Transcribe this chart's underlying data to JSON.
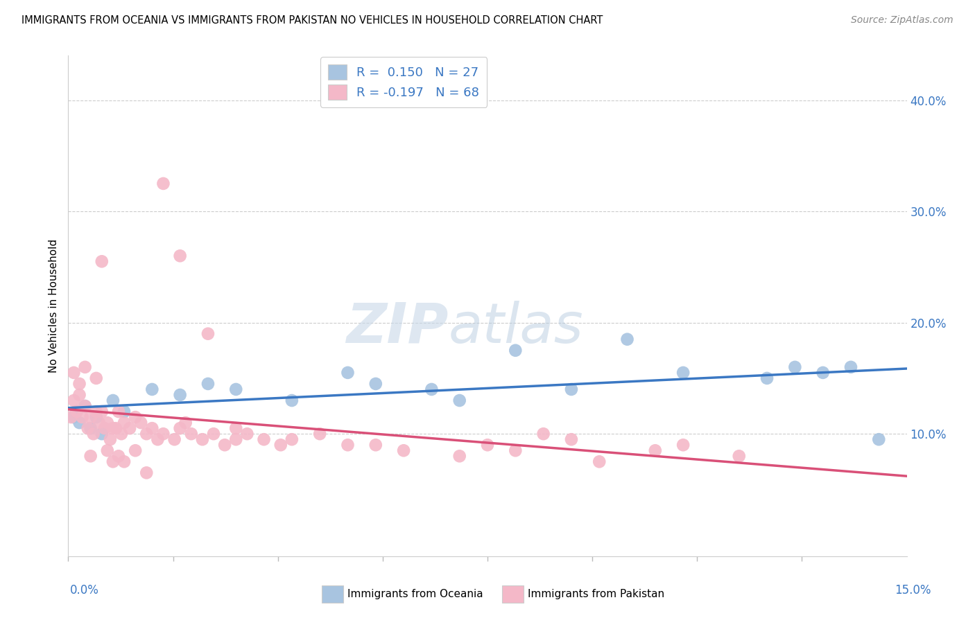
{
  "title": "IMMIGRANTS FROM OCEANIA VS IMMIGRANTS FROM PAKISTAN NO VEHICLES IN HOUSEHOLD CORRELATION CHART",
  "source": "Source: ZipAtlas.com",
  "ylabel": "No Vehicles in Household",
  "y_ticks": [
    10.0,
    20.0,
    30.0,
    40.0
  ],
  "xlim": [
    0.0,
    15.0
  ],
  "ylim": [
    -1.0,
    44.0
  ],
  "legend_r1": "R =  0.150",
  "legend_n1": "N = 27",
  "legend_r2": "R = -0.197",
  "legend_n2": "N = 68",
  "oceania_color": "#a8c4e0",
  "pakistan_color": "#f4b8c8",
  "trendline_oceania_color": "#3b78c3",
  "trendline_pakistan_color": "#d95078",
  "watermark_zip": "ZIP",
  "watermark_atlas": "atlas",
  "oceania_x": [
    0.1,
    0.15,
    0.2,
    0.3,
    0.4,
    0.5,
    0.6,
    0.8,
    1.0,
    1.5,
    2.0,
    2.5,
    3.0,
    4.0,
    5.0,
    5.5,
    6.5,
    7.0,
    8.0,
    9.0,
    10.0,
    11.0,
    12.5,
    13.0,
    13.5,
    14.0,
    14.5
  ],
  "oceania_y": [
    11.5,
    12.0,
    11.0,
    12.5,
    10.5,
    11.5,
    10.0,
    13.0,
    12.0,
    14.0,
    13.5,
    14.5,
    14.0,
    13.0,
    15.5,
    14.5,
    14.0,
    13.0,
    17.5,
    14.0,
    18.5,
    15.5,
    15.0,
    16.0,
    15.5,
    16.0,
    9.5
  ],
  "pakistan_x": [
    0.05,
    0.1,
    0.15,
    0.2,
    0.25,
    0.3,
    0.35,
    0.4,
    0.45,
    0.5,
    0.55,
    0.6,
    0.65,
    0.7,
    0.75,
    0.8,
    0.85,
    0.9,
    0.95,
    1.0,
    1.1,
    1.2,
    1.3,
    1.4,
    1.5,
    1.6,
    1.7,
    1.9,
    2.0,
    2.1,
    2.2,
    2.4,
    2.6,
    2.8,
    3.0,
    3.2,
    3.5,
    3.8,
    4.0,
    4.5,
    5.0,
    5.5,
    6.0,
    7.0,
    7.5,
    8.0,
    9.0,
    9.5,
    10.5,
    11.0,
    12.0,
    0.1,
    0.2,
    0.3,
    0.4,
    0.5,
    0.6,
    0.7,
    0.8,
    0.9,
    1.0,
    1.2,
    1.4,
    1.7,
    2.0,
    2.5,
    3.0,
    8.5
  ],
  "pakistan_y": [
    11.5,
    13.0,
    12.0,
    13.5,
    11.5,
    12.5,
    10.5,
    11.5,
    10.0,
    12.0,
    11.0,
    12.0,
    10.5,
    11.0,
    9.5,
    10.5,
    10.5,
    12.0,
    10.0,
    11.0,
    10.5,
    11.5,
    11.0,
    10.0,
    10.5,
    9.5,
    10.0,
    9.5,
    10.5,
    11.0,
    10.0,
    9.5,
    10.0,
    9.0,
    10.5,
    10.0,
    9.5,
    9.0,
    9.5,
    10.0,
    9.0,
    9.0,
    8.5,
    8.0,
    9.0,
    8.5,
    9.5,
    7.5,
    8.5,
    9.0,
    8.0,
    15.5,
    14.5,
    16.0,
    8.0,
    15.0,
    25.5,
    8.5,
    7.5,
    8.0,
    7.5,
    8.5,
    6.5,
    32.5,
    26.0,
    19.0,
    9.5,
    10.0
  ]
}
